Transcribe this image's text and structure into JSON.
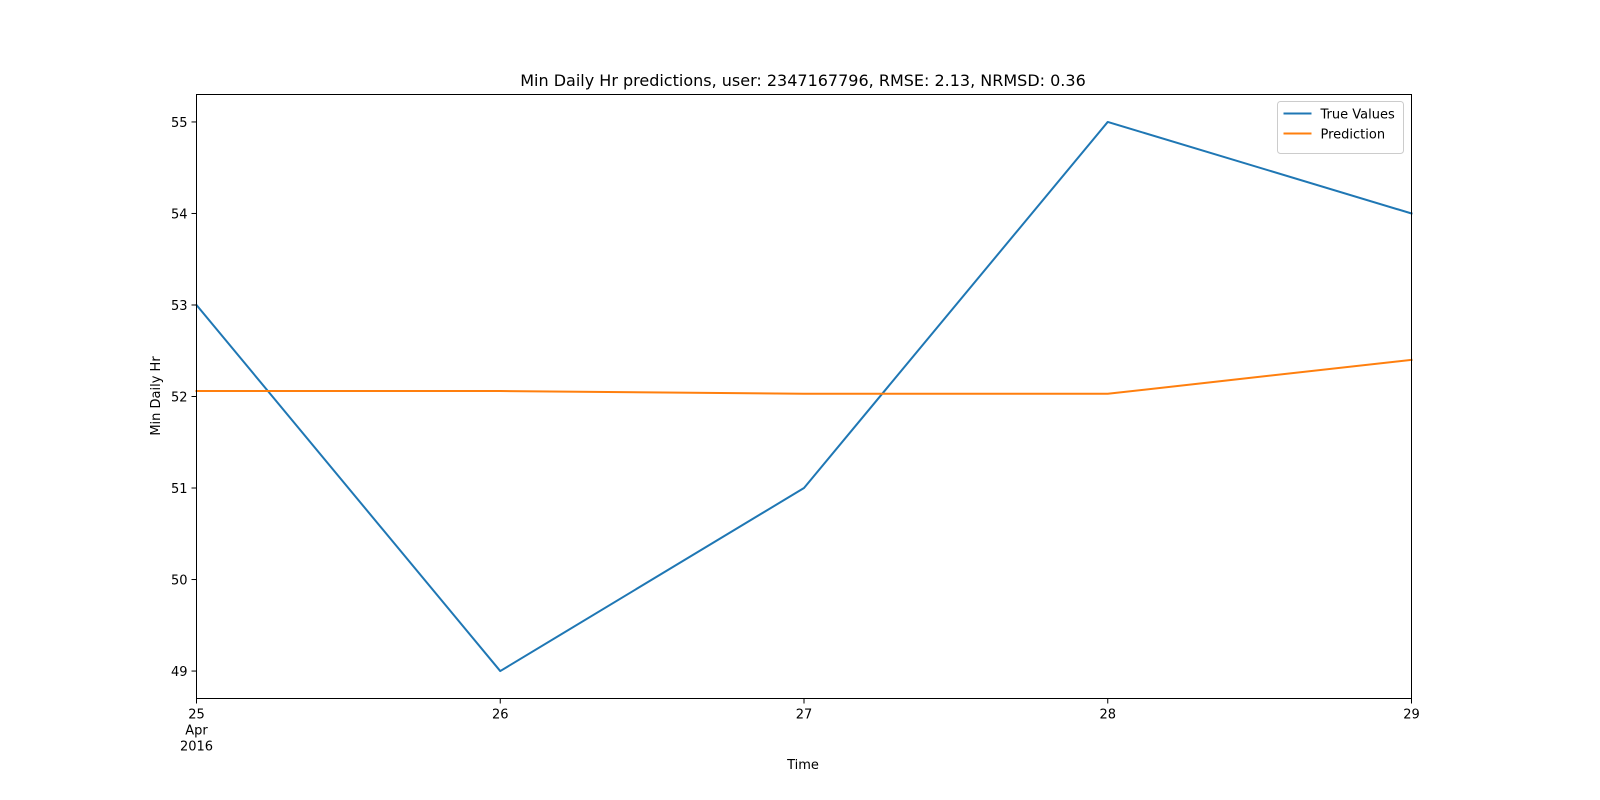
{
  "chart_data": {
    "type": "line",
    "title": "Min Daily Hr predictions, user: 2347167796, RMSE: 2.13, NRMSD: 0.36",
    "xlabel": "Time",
    "ylabel": "Min Daily Hr",
    "x": [
      "2016-04-25",
      "2016-04-26",
      "2016-04-27",
      "2016-04-28",
      "2016-04-29"
    ],
    "xticks": [
      {
        "label": "25",
        "sub1": "Apr",
        "sub2": "2016"
      },
      {
        "label": "26"
      },
      {
        "label": "27"
      },
      {
        "label": "28"
      },
      {
        "label": "29"
      }
    ],
    "ylim": [
      48.7,
      55.3
    ],
    "yticks": [
      49,
      50,
      51,
      52,
      53,
      54,
      55
    ],
    "grid": false,
    "legend_position": "top-right",
    "series": [
      {
        "name": "True Values",
        "color": "#1f77b4",
        "values": [
          53,
          49,
          51,
          55,
          54
        ]
      },
      {
        "name": "Prediction",
        "color": "#ff7f0e",
        "values": [
          52.06,
          52.06,
          52.03,
          52.03,
          52.4
        ]
      }
    ]
  }
}
